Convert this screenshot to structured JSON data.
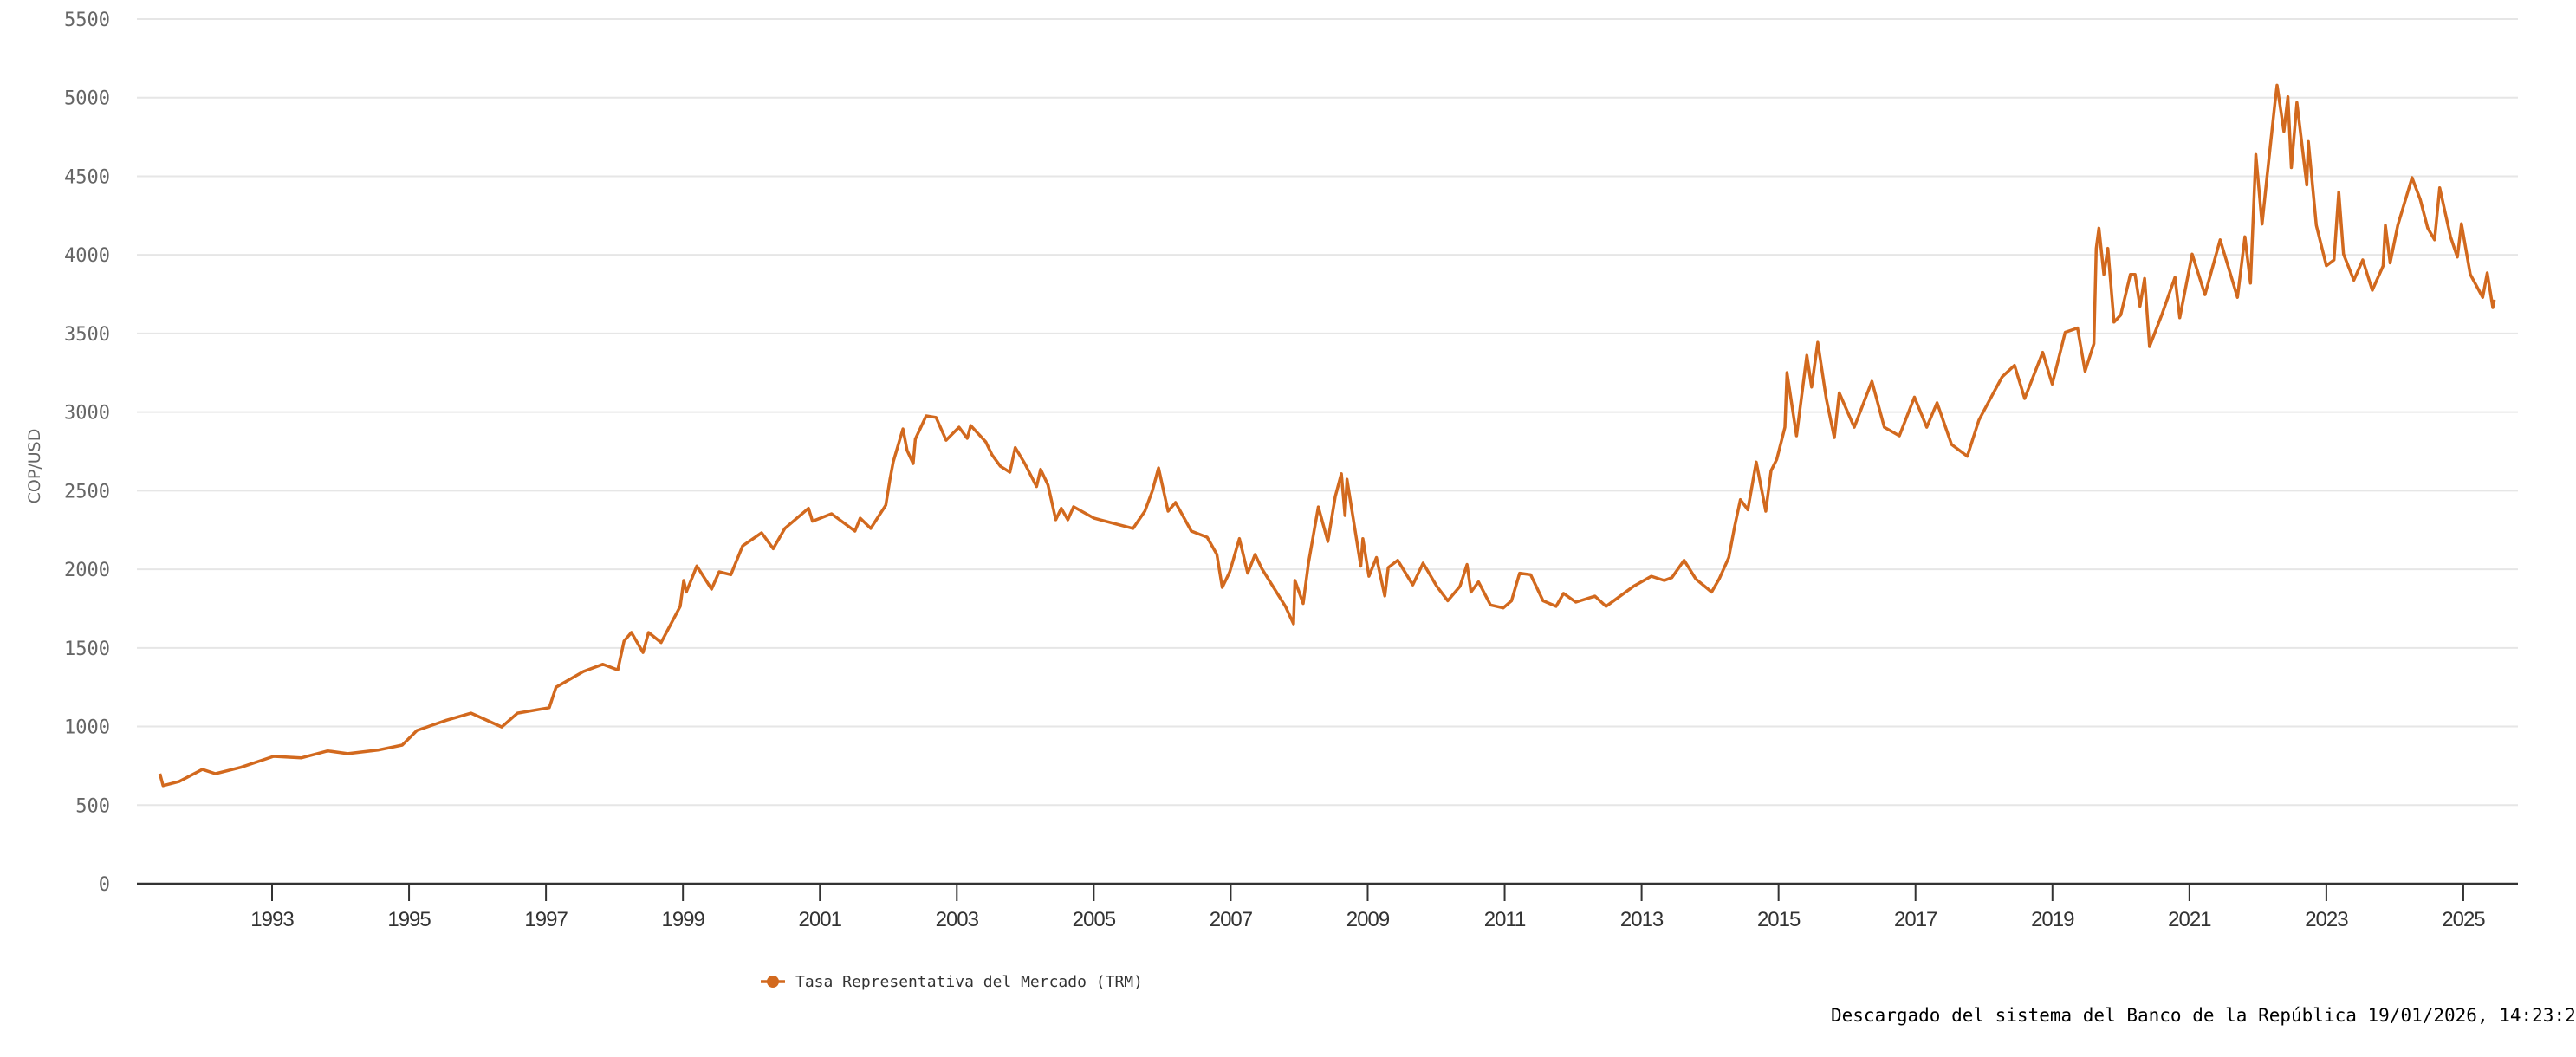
{
  "chart_data": {
    "type": "line",
    "ylabel": "COP/USD",
    "xlabel": "",
    "ylim": [
      0,
      5500
    ],
    "y_ticks": [
      0,
      500,
      1000,
      1500,
      2000,
      2500,
      3000,
      3500,
      4000,
      4500,
      5000,
      5500
    ],
    "x_ticks": [
      "1993",
      "1995",
      "1997",
      "1999",
      "2001",
      "2003",
      "2005",
      "2007",
      "2009",
      "2011",
      "2013",
      "2015",
      "2017",
      "2019",
      "2021",
      "2023",
      "2025"
    ],
    "grid": "horizontal",
    "legend_position": "bottom",
    "colors": {
      "series": "#D2691E",
      "grid": "#E6E6E6",
      "axis": "#333333"
    },
    "series": [
      {
        "name": "Tasa Representativa del Mercado (TRM)",
        "x": [
          "1991-12-02",
          "1991-12-19",
          "1992-03-13",
          "1992-07-15",
          "1992-09-24",
          "1993-02-07",
          "1993-07-30",
          "1993-12-24",
          "1994-05-14",
          "1994-08-29",
          "1995-02-07",
          "1995-06-15",
          "1995-09-02",
          "1996-02-07",
          "1996-06-17",
          "1996-11-28",
          "1997-02-21",
          "1997-08-07",
          "1997-09-13",
          "1998-02-07",
          "1998-05-19",
          "1998-08-07",
          "1998-09-10",
          "1998-10-19",
          "1998-12-20",
          "1999-01-19",
          "1999-03-25",
          "1999-07-05",
          "1999-07-24",
          "1999-08-07",
          "1999-10-02",
          "1999-12-20",
          "2000-01-30",
          "2000-04-01",
          "2000-06-03",
          "2000-09-13",
          "2000-11-14",
          "2001-01-15",
          "2001-05-19",
          "2001-06-10",
          "2001-09-20",
          "2002-01-23",
          "2002-02-21",
          "2002-04-16",
          "2002-07-05",
          "2002-07-27",
          "2002-08-14",
          "2002-10-05",
          "2002-10-27",
          "2002-11-29",
          "2002-12-10",
          "2003-02-07",
          "2003-03-29",
          "2003-05-22",
          "2003-07-30",
          "2003-09-13",
          "2003-10-01",
          "2003-12-20",
          "2004-01-23",
          "2004-03-07",
          "2004-04-27",
          "2004-05-25",
          "2004-07-15",
          "2004-09-17",
          "2004-10-08",
          "2004-11-17",
          "2004-12-28",
          "2005-01-27",
          "2005-03-01",
          "2005-04-01",
          "2005-07-19",
          "2006-02-14",
          "2006-04-16",
          "2006-05-25",
          "2006-06-28",
          "2006-08-18",
          "2006-09-27",
          "2006-12-20",
          "2007-03-13",
          "2007-05-04",
          "2007-06-02",
          "2007-07-12",
          "2007-09-02",
          "2007-10-16",
          "2007-11-25",
          "2008-01-01",
          "2008-05-04",
          "2008-06-17",
          "2008-06-24",
          "2008-08-07",
          "2008-09-05",
          "2008-10-27",
          "2008-12-17",
          "2009-01-26",
          "2009-02-28",
          "2009-03-17",
          "2009-03-28",
          "2009-06-10",
          "2009-06-21",
          "2009-07-23",
          "2009-09-02",
          "2009-10-16",
          "2009-11-04",
          "2009-12-24",
          "2010-03-13",
          "2010-05-07",
          "2010-07-19",
          "2010-09-17",
          "2010-11-21",
          "2010-12-28",
          "2011-01-19",
          "2011-02-28",
          "2011-05-01",
          "2011-07-08",
          "2011-08-22",
          "2011-10-04",
          "2011-12-02",
          "2012-02-07",
          "2012-04-16",
          "2012-05-25",
          "2012-07-30",
          "2012-11-10",
          "2013-01-08",
          "2013-06-03",
          "2013-09-06",
          "2013-11-14",
          "2013-12-24",
          "2014-02-28",
          "2014-04-30",
          "2014-07-23",
          "2014-09-02",
          "2014-10-23",
          "2014-11-25",
          "2014-12-24",
          "2015-02-03",
          "2015-03-17",
          "2015-05-07",
          "2015-06-05",
          "2015-07-05",
          "2015-08-18",
          "2015-08-29",
          "2015-10-19",
          "2015-12-13",
          "2016-01-08",
          "2016-02-10",
          "2016-03-25",
          "2016-05-07",
          "2016-06-03",
          "2016-08-22",
          "2016-11-25",
          "2017-01-30",
          "2017-04-19",
          "2017-07-08",
          "2017-09-13",
          "2017-11-07",
          "2018-01-23",
          "2018-04-16",
          "2018-06-17",
          "2018-08-25",
          "2018-10-19",
          "2018-12-24",
          "2019-02-17",
          "2019-05-22",
          "2019-07-12",
          "2019-09-20",
          "2019-11-25",
          "2020-01-04",
          "2020-02-21",
          "2020-03-03",
          "2020-03-17",
          "2020-04-13",
          "2020-05-04",
          "2020-06-06",
          "2020-07-12",
          "2020-09-02",
          "2020-09-27",
          "2020-10-23",
          "2020-11-17",
          "2020-12-13",
          "2021-02-17",
          "2021-04-27",
          "2021-05-22",
          "2021-07-27",
          "2021-10-04",
          "2021-12-24",
          "2022-02-14",
          "2022-03-25",
          "2022-05-04",
          "2022-06-03",
          "2022-07-01",
          "2022-08-04",
          "2022-08-29",
          "2022-10-12",
          "2022-10-23",
          "2022-11-29",
          "2022-12-20",
          "2023-01-08",
          "2023-02-07",
          "2023-03-29",
          "2023-04-07",
          "2023-05-19",
          "2023-07-12",
          "2023-08-22",
          "2023-09-17",
          "2023-10-12",
          "2023-12-06",
          "2024-01-23",
          "2024-03-13",
          "2024-05-10",
          "2024-05-22",
          "2024-06-17",
          "2024-07-27",
          "2024-10-12",
          "2024-11-25",
          "2025-01-04",
          "2025-02-10",
          "2025-03-07",
          "2025-05-04",
          "2025-06-10",
          "2025-07-01",
          "2025-08-18",
          "2025-10-23",
          "2025-11-17",
          "2025-12-16",
          "2025-12-24"
        ],
        "values": [
          700,
          624,
          650,
          727,
          700,
          740,
          810,
          800,
          845,
          827,
          850,
          882,
          975,
          1040,
          1085,
          997,
          1085,
          1120,
          1250,
          1350,
          1396,
          1360,
          1543,
          1598,
          1471,
          1598,
          1534,
          1764,
          1929,
          1855,
          2021,
          1874,
          1984,
          1966,
          2149,
          2232,
          2131,
          2260,
          2388,
          2306,
          2353,
          2243,
          2325,
          2260,
          2408,
          2572,
          2684,
          2893,
          2756,
          2673,
          2829,
          2976,
          2966,
          2821,
          2904,
          2833,
          2914,
          2811,
          2728,
          2655,
          2618,
          2774,
          2673,
          2526,
          2636,
          2536,
          2315,
          2388,
          2315,
          2398,
          2325,
          2260,
          2370,
          2498,
          2645,
          2370,
          2425,
          2243,
          2204,
          2094,
          1885,
          1984,
          2195,
          1975,
          2094,
          2002,
          1764,
          1653,
          1929,
          1782,
          2039,
          2397,
          2177,
          2462,
          2608,
          2342,
          2572,
          2020,
          2195,
          1956,
          2075,
          1830,
          2011,
          2057,
          1901,
          2039,
          1892,
          1800,
          1892,
          2030,
          1855,
          1920,
          1773,
          1754,
          1800,
          1975,
          1966,
          1800,
          1764,
          1847,
          1791,
          1829,
          1764,
          1892,
          1956,
          1929,
          1947,
          2057,
          1938,
          1855,
          1938,
          2075,
          2278,
          2443,
          2379,
          2682,
          2370,
          2627,
          2700,
          2904,
          3251,
          2849,
          3361,
          3159,
          3444,
          3086,
          2838,
          3122,
          2904,
          3196,
          2904,
          2849,
          3095,
          2904,
          3059,
          2794,
          2719,
          2949,
          3104,
          3224,
          3297,
          3086,
          3380,
          3178,
          3508,
          3535,
          3260,
          3435,
          4041,
          4170,
          3876,
          4041,
          3572,
          3618,
          3876,
          3876,
          3673,
          3850,
          3417,
          3618,
          3857,
          3600,
          4005,
          3747,
          4096,
          3894,
          3730,
          4115,
          3820,
          4638,
          4196,
          4481,
          4969,
          5079,
          4785,
          5005,
          4555,
          4969,
          4445,
          4721,
          4188,
          3931,
          3968,
          4400,
          4005,
          3839,
          3968,
          3775,
          3930,
          4188,
          3949,
          4188,
          4491,
          4353,
          4170,
          4096,
          4427,
          4115,
          3986,
          4198,
          3876,
          3730,
          3885,
          3665,
          3715
        ]
      }
    ]
  },
  "legend": {
    "label": "Tasa Representativa del Mercado (TRM)",
    "marker_icon": "line-circle-marker-icon"
  },
  "footer": {
    "text": "Descargado del sistema del Banco de la República 19/01/2026, 14:23:2"
  }
}
